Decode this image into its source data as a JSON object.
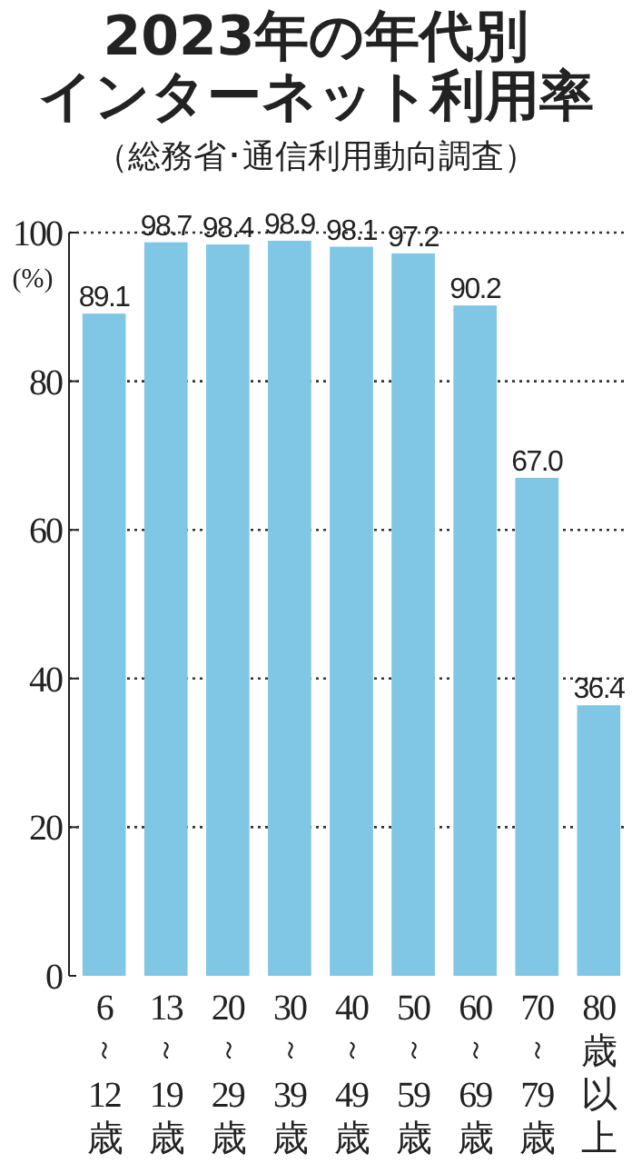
{
  "chart_data": {
    "type": "bar",
    "title": "2023年の年代別",
    "subtitle": "インターネット利用率",
    "annotations": [
      "（総務省･通信利用動向調査）"
    ],
    "ylabel": "(%)",
    "categories": [
      "6～12歳",
      "13～19歳",
      "20～29歳",
      "30～39歳",
      "40～49歳",
      "50～59歳",
      "60～69歳",
      "70～79歳",
      "80歳以上"
    ],
    "values": [
      89.1,
      98.7,
      98.4,
      98.9,
      98.1,
      97.2,
      90.2,
      67.0,
      36.4
    ],
    "value_labels": [
      "89.1",
      "98.7",
      "98.4",
      "98.9",
      "98.1",
      "97.2",
      "90.2",
      "67.0",
      "36.4"
    ],
    "color": "#80c6e5",
    "ylim": [
      0,
      100
    ],
    "yticks": [
      0,
      20,
      40,
      60,
      80,
      100
    ],
    "grid": "y"
  }
}
